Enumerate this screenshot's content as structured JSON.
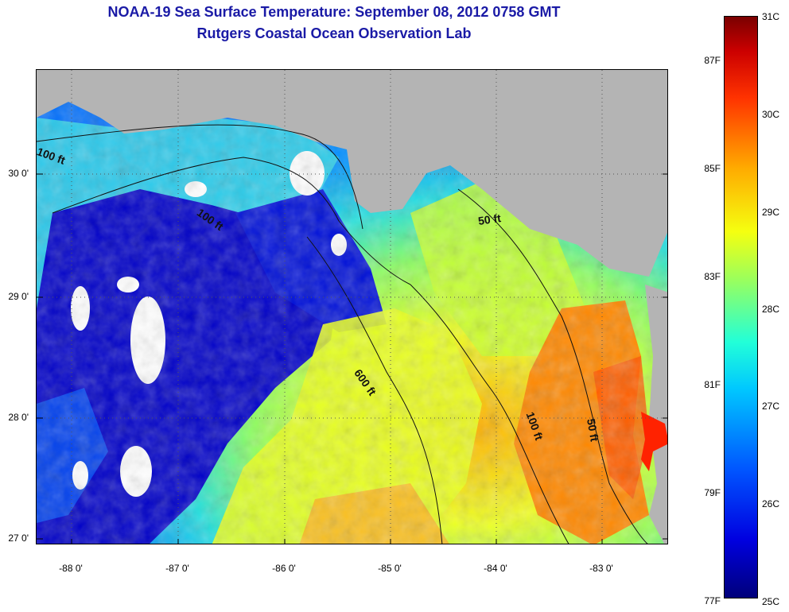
{
  "title": {
    "line1": "NOAA-19 Sea Surface Temperature:  September 08, 2012 0758 GMT",
    "line2": "Rutgers Coastal Ocean Observation Lab"
  },
  "map": {
    "lat_labels": [
      "30 0'",
      "29 0'",
      "28 0'",
      "27 0'"
    ],
    "lon_labels": [
      "-88 0'",
      "-87 0'",
      "-86 0'",
      "-85 0'",
      "-84 0'",
      "-83 0'"
    ],
    "land_color": "#b4b4b4",
    "contours": [
      {
        "label": "50 ft",
        "id": "50-north"
      },
      {
        "label": "100 ft",
        "id": "100-west"
      },
      {
        "label": "100 ft",
        "id": "100-mid"
      },
      {
        "label": "600 ft",
        "id": "600"
      },
      {
        "label": "100 ft",
        "id": "100-south"
      },
      {
        "label": "50 ft",
        "id": "50-south"
      }
    ]
  },
  "colorbar": {
    "celsius": [
      "31C",
      "30C",
      "29C",
      "28C",
      "27C",
      "26C",
      "25C"
    ],
    "fahrenheit": [
      "87F",
      "85F",
      "83F",
      "81F",
      "79F",
      "77F"
    ],
    "colors": [
      "#00007a",
      "#0000e0",
      "#0055ff",
      "#00c8ff",
      "#22ffd8",
      "#9dff5a",
      "#f5ff10",
      "#ffaa00",
      "#ff3300",
      "#cc0000",
      "#7a0000"
    ]
  }
}
